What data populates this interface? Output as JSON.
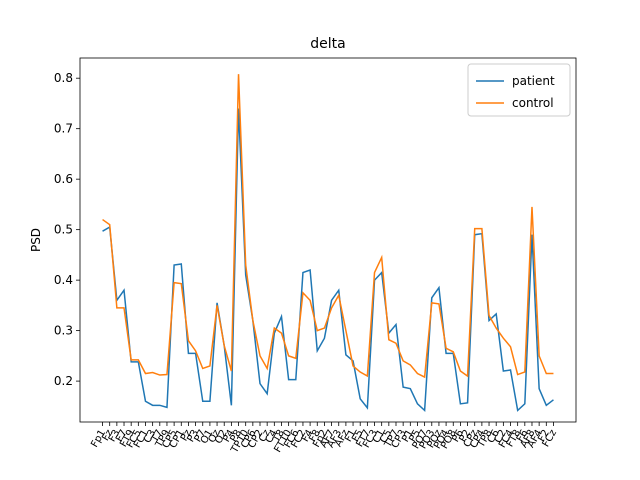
{
  "chart_data": {
    "type": "line",
    "title": "delta",
    "y_label": "PSD",
    "categories": [
      "Fp1",
      "Fz",
      "F3",
      "F7",
      "FT9",
      "FC5",
      "FC1",
      "C3",
      "T7",
      "TP9",
      "CP5",
      "CP1",
      "Pz",
      "P3",
      "P7",
      "O1",
      "Oz",
      "O2",
      "P4",
      "P8",
      "TP10",
      "CP6",
      "CP2",
      "Cz",
      "C4",
      "T8",
      "FT10",
      "FC6",
      "FC2",
      "F4",
      "F8",
      "Fp2",
      "AF7",
      "AF3",
      "AFz",
      "F1",
      "F5",
      "FT7",
      "FC3",
      "C1",
      "C5",
      "TP7",
      "CP3",
      "P1",
      "P5",
      "PO7",
      "PO3",
      "POz",
      "PO4",
      "PO8",
      "P6",
      "P2",
      "CPz",
      "CP4",
      "TP8",
      "C6",
      "C2",
      "FC4",
      "FT8",
      "F6",
      "AF8",
      "AF4",
      "F2",
      "FCz"
    ],
    "series": [
      {
        "name": "patient",
        "color": "#1f77b4",
        "values": [
          0.497,
          0.505,
          0.36,
          0.38,
          0.238,
          0.238,
          0.16,
          0.152,
          0.152,
          0.148,
          0.43,
          0.432,
          0.255,
          0.255,
          0.16,
          0.16,
          0.355,
          0.27,
          0.152,
          0.74,
          0.41,
          0.32,
          0.195,
          0.175,
          0.295,
          0.328,
          0.203,
          0.203,
          0.415,
          0.42,
          0.26,
          0.285,
          0.36,
          0.38,
          0.252,
          0.24,
          0.165,
          0.147,
          0.4,
          0.415,
          0.295,
          0.312,
          0.188,
          0.185,
          0.155,
          0.142,
          0.365,
          0.385,
          0.255,
          0.255,
          0.155,
          0.157,
          0.49,
          0.492,
          0.32,
          0.333,
          0.22,
          0.222,
          0.142,
          0.155,
          0.49,
          0.185,
          0.152,
          0.163
        ]
      },
      {
        "name": "control",
        "color": "#ff7f0e",
        "values": [
          0.52,
          0.51,
          0.345,
          0.345,
          0.242,
          0.242,
          0.215,
          0.217,
          0.212,
          0.213,
          0.395,
          0.393,
          0.28,
          0.26,
          0.225,
          0.23,
          0.35,
          0.27,
          0.22,
          0.808,
          0.43,
          0.32,
          0.25,
          0.225,
          0.305,
          0.295,
          0.25,
          0.245,
          0.375,
          0.36,
          0.3,
          0.305,
          0.345,
          0.37,
          0.3,
          0.23,
          0.218,
          0.21,
          0.415,
          0.445,
          0.282,
          0.275,
          0.24,
          0.232,
          0.215,
          0.208,
          0.355,
          0.353,
          0.265,
          0.258,
          0.22,
          0.21,
          0.502,
          0.502,
          0.33,
          0.305,
          0.285,
          0.268,
          0.213,
          0.218,
          0.545,
          0.25,
          0.215,
          0.215
        ]
      }
    ],
    "ylim": [
      0.119,
      0.84
    ],
    "yticks": [
      0.2,
      0.3,
      0.4,
      0.5,
      0.6,
      0.7,
      0.8
    ],
    "legend": "upper right",
    "grid": false
  }
}
